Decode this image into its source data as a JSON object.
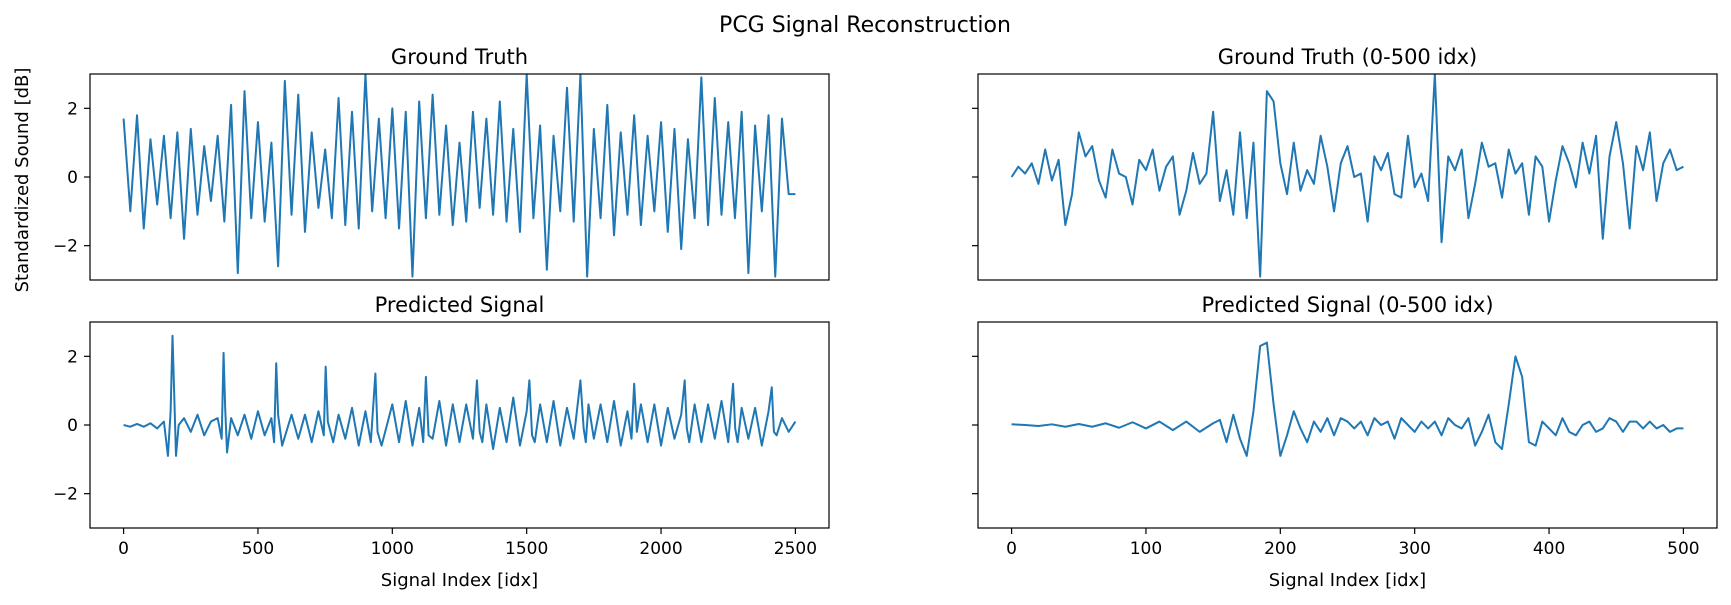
{
  "figure": {
    "title": "PCG Signal Reconstruction"
  },
  "chart_data": [
    {
      "type": "line",
      "title": "Ground Truth",
      "xlabel": "",
      "ylabel": "Standardized Sound [dB]",
      "xlim": [
        -125,
        2625
      ],
      "ylim": [
        -3,
        3
      ],
      "xticks": [],
      "xtick_labels": [],
      "yticks": [
        -2,
        0,
        2
      ],
      "ytick_labels": [
        "−2",
        "0",
        "2"
      ],
      "grid": false,
      "color": "#1f77b4",
      "series": [
        {
          "x": [
            0,
            25,
            50,
            75,
            100,
            125,
            150,
            175,
            200,
            225,
            250,
            275,
            300,
            325,
            350,
            375,
            400,
            425,
            450,
            475,
            500,
            525,
            550,
            575,
            600,
            625,
            650,
            675,
            700,
            725,
            750,
            775,
            800,
            825,
            850,
            875,
            900,
            925,
            950,
            975,
            1000,
            1025,
            1050,
            1075,
            1100,
            1125,
            1150,
            1175,
            1200,
            1225,
            1250,
            1275,
            1300,
            1325,
            1350,
            1375,
            1400,
            1425,
            1450,
            1475,
            1500,
            1525,
            1550,
            1575,
            1600,
            1625,
            1650,
            1675,
            1700,
            1725,
            1750,
            1775,
            1800,
            1825,
            1850,
            1875,
            1900,
            1925,
            1950,
            1975,
            2000,
            2025,
            2050,
            2075,
            2100,
            2125,
            2150,
            2175,
            2200,
            2225,
            2250,
            2275,
            2300,
            2325,
            2350,
            2375,
            2400,
            2425,
            2450,
            2475,
            2500
          ],
          "y": [
            1.7,
            -1.0,
            1.8,
            -1.5,
            1.1,
            -0.8,
            1.2,
            -1.2,
            1.3,
            -1.8,
            1.4,
            -1.1,
            0.9,
            -0.7,
            1.2,
            -1.3,
            2.1,
            -2.8,
            2.5,
            -1.2,
            1.6,
            -1.3,
            1.0,
            -2.6,
            2.8,
            -1.1,
            2.4,
            -1.6,
            1.3,
            -0.9,
            0.8,
            -1.2,
            2.3,
            -1.4,
            1.9,
            -1.5,
            3.0,
            -1.0,
            1.7,
            -1.2,
            2.0,
            -1.5,
            1.9,
            -2.9,
            2.2,
            -1.2,
            2.4,
            -1.1,
            1.5,
            -1.4,
            1.0,
            -1.3,
            1.9,
            -0.9,
            1.7,
            -1.1,
            2.2,
            -1.3,
            1.4,
            -1.6,
            3.0,
            -1.2,
            1.5,
            -2.7,
            1.2,
            -1.0,
            2.6,
            -1.3,
            3.0,
            -2.9,
            1.4,
            -1.2,
            2.1,
            -1.7,
            1.3,
            -1.1,
            1.8,
            -1.4,
            1.2,
            -1.0,
            1.6,
            -1.6,
            1.4,
            -2.1,
            1.1,
            -1.2,
            2.9,
            -1.4,
            2.3,
            -1.1,
            1.6,
            -1.2,
            1.9,
            -2.8,
            1.5,
            -1.0,
            1.8,
            -2.9,
            1.7,
            -0.5,
            -0.5
          ]
        }
      ]
    },
    {
      "type": "line",
      "title": "Ground Truth (0-500 idx)",
      "xlabel": "",
      "ylabel": "",
      "xlim": [
        -25,
        525
      ],
      "ylim": [
        -3,
        3
      ],
      "xticks": [],
      "xtick_labels": [],
      "yticks": [
        -2,
        0,
        2
      ],
      "ytick_labels": [],
      "grid": false,
      "color": "#1f77b4",
      "series": [
        {
          "x": [
            0,
            5,
            10,
            15,
            20,
            25,
            30,
            35,
            40,
            45,
            50,
            55,
            60,
            65,
            70,
            75,
            80,
            85,
            90,
            95,
            100,
            105,
            110,
            115,
            120,
            125,
            130,
            135,
            140,
            145,
            150,
            155,
            160,
            165,
            170,
            175,
            180,
            185,
            190,
            195,
            200,
            205,
            210,
            215,
            220,
            225,
            230,
            235,
            240,
            245,
            250,
            255,
            260,
            265,
            270,
            275,
            280,
            285,
            290,
            295,
            300,
            305,
            310,
            315,
            320,
            325,
            330,
            335,
            340,
            345,
            350,
            355,
            360,
            365,
            370,
            375,
            380,
            385,
            390,
            395,
            400,
            405,
            410,
            415,
            420,
            425,
            430,
            435,
            440,
            445,
            450,
            455,
            460,
            465,
            470,
            475,
            480,
            485,
            490,
            495,
            500
          ],
          "y": [
            0.0,
            0.3,
            0.1,
            0.4,
            -0.2,
            0.8,
            -0.1,
            0.5,
            -1.4,
            -0.5,
            1.3,
            0.6,
            0.9,
            -0.1,
            -0.6,
            0.8,
            0.1,
            0.0,
            -0.8,
            0.5,
            0.2,
            0.8,
            -0.4,
            0.3,
            0.6,
            -1.1,
            -0.4,
            0.7,
            -0.2,
            0.1,
            1.9,
            -0.7,
            0.2,
            -1.1,
            1.3,
            -1.2,
            1.0,
            -2.9,
            2.5,
            2.2,
            0.4,
            -0.5,
            1.0,
            -0.4,
            0.2,
            -0.2,
            1.2,
            0.3,
            -1.0,
            0.4,
            0.9,
            0.0,
            0.1,
            -1.3,
            0.6,
            0.2,
            0.7,
            -0.5,
            -0.6,
            1.2,
            -0.3,
            0.1,
            -0.7,
            3.0,
            -1.9,
            0.6,
            0.2,
            0.8,
            -1.2,
            -0.2,
            1.0,
            0.3,
            0.4,
            -0.6,
            0.8,
            0.1,
            0.4,
            -1.1,
            0.6,
            0.3,
            -1.3,
            -0.1,
            0.9,
            0.4,
            -0.3,
            1.0,
            0.1,
            1.2,
            -1.8,
            0.6,
            1.6,
            0.4,
            -1.5,
            0.9,
            0.2,
            1.3,
            -0.7,
            0.4,
            0.8,
            0.2,
            0.3
          ]
        }
      ]
    },
    {
      "type": "line",
      "title": "Predicted Signal",
      "xlabel": "Signal Index [idx]",
      "ylabel": "",
      "xlim": [
        -125,
        2625
      ],
      "ylim": [
        -3,
        3
      ],
      "xticks": [
        0,
        500,
        1000,
        1500,
        2000,
        2500
      ],
      "xtick_labels": [
        "0",
        "500",
        "1000",
        "1500",
        "2000",
        "2500"
      ],
      "yticks": [
        -2,
        0,
        2
      ],
      "ytick_labels": [
        "−2",
        "0",
        "2"
      ],
      "grid": false,
      "color": "#1f77b4",
      "series": [
        {
          "x": [
            0,
            25,
            50,
            75,
            100,
            125,
            150,
            165,
            175,
            182,
            188,
            195,
            205,
            225,
            250,
            275,
            300,
            325,
            350,
            365,
            372,
            378,
            385,
            400,
            425,
            450,
            475,
            500,
            525,
            550,
            560,
            568,
            575,
            590,
            625,
            650,
            675,
            700,
            725,
            745,
            752,
            760,
            780,
            800,
            825,
            850,
            875,
            900,
            920,
            937,
            945,
            960,
            1000,
            1025,
            1050,
            1075,
            1100,
            1115,
            1125,
            1135,
            1150,
            1175,
            1200,
            1225,
            1250,
            1275,
            1300,
            1315,
            1325,
            1335,
            1350,
            1375,
            1400,
            1425,
            1450,
            1475,
            1500,
            1510,
            1520,
            1530,
            1550,
            1575,
            1600,
            1625,
            1650,
            1675,
            1700,
            1712,
            1720,
            1730,
            1750,
            1775,
            1800,
            1825,
            1850,
            1875,
            1890,
            1900,
            1910,
            1925,
            1950,
            1975,
            2000,
            2025,
            2050,
            2075,
            2088,
            2096,
            2105,
            2125,
            2150,
            2175,
            2200,
            2225,
            2250,
            2268,
            2276,
            2285,
            2300,
            2325,
            2350,
            2375,
            2400,
            2412,
            2420,
            2430,
            2450,
            2475,
            2500
          ],
          "y": [
            0.0,
            -0.05,
            0.03,
            -0.05,
            0.05,
            -0.1,
            0.1,
            -0.9,
            0.4,
            2.6,
            1.0,
            -0.9,
            0.0,
            0.2,
            -0.2,
            0.3,
            -0.3,
            0.1,
            0.2,
            -0.4,
            2.1,
            0.5,
            -0.8,
            0.2,
            -0.3,
            0.3,
            -0.4,
            0.4,
            -0.3,
            0.2,
            -0.5,
            1.8,
            0.3,
            -0.6,
            0.3,
            -0.4,
            0.3,
            -0.5,
            0.4,
            -0.3,
            1.7,
            0.1,
            -0.5,
            0.3,
            -0.4,
            0.5,
            -0.6,
            0.4,
            -0.5,
            1.5,
            -0.2,
            -0.6,
            0.6,
            -0.5,
            0.7,
            -0.6,
            0.5,
            -0.5,
            1.4,
            -0.3,
            -0.4,
            0.7,
            -0.6,
            0.6,
            -0.5,
            0.6,
            -0.4,
            1.3,
            -0.2,
            -0.5,
            0.6,
            -0.7,
            0.5,
            -0.5,
            0.8,
            -0.6,
            0.4,
            1.3,
            -0.3,
            -0.5,
            0.6,
            -0.5,
            0.7,
            -0.6,
            0.5,
            -0.4,
            1.3,
            -0.1,
            -0.5,
            0.6,
            -0.4,
            0.6,
            -0.5,
            0.7,
            -0.6,
            0.4,
            -0.4,
            1.2,
            -0.2,
            0.6,
            -0.5,
            0.6,
            -0.6,
            0.5,
            -0.4,
            0.3,
            1.3,
            -0.1,
            -0.5,
            0.6,
            -0.5,
            0.6,
            -0.4,
            0.7,
            -0.5,
            1.2,
            -0.1,
            -0.5,
            0.5,
            -0.4,
            0.5,
            -0.6,
            0.4,
            1.1,
            -0.2,
            -0.3,
            0.2,
            -0.2,
            0.1
          ]
        }
      ]
    },
    {
      "type": "line",
      "title": "Predicted Signal (0-500 idx)",
      "xlabel": "Signal Index [idx]",
      "ylabel": "",
      "xlim": [
        -25,
        525
      ],
      "ylim": [
        -3,
        3
      ],
      "xticks": [
        0,
        100,
        200,
        300,
        400,
        500
      ],
      "xtick_labels": [
        "0",
        "100",
        "200",
        "300",
        "400",
        "500"
      ],
      "yticks": [
        -2,
        0,
        2
      ],
      "ytick_labels": [],
      "grid": false,
      "color": "#1f77b4",
      "series": [
        {
          "x": [
            0,
            10,
            20,
            30,
            40,
            50,
            60,
            70,
            80,
            90,
            100,
            110,
            120,
            130,
            140,
            150,
            155,
            160,
            165,
            170,
            175,
            180,
            185,
            190,
            195,
            200,
            205,
            210,
            215,
            220,
            225,
            230,
            235,
            240,
            245,
            250,
            255,
            260,
            265,
            270,
            275,
            280,
            285,
            290,
            295,
            300,
            305,
            310,
            315,
            320,
            325,
            330,
            335,
            340,
            345,
            350,
            355,
            360,
            365,
            370,
            375,
            380,
            385,
            390,
            395,
            400,
            405,
            410,
            415,
            420,
            425,
            430,
            435,
            440,
            445,
            450,
            455,
            460,
            465,
            470,
            475,
            480,
            485,
            490,
            495,
            500
          ],
          "y": [
            0.02,
            0.0,
            -0.03,
            0.02,
            -0.05,
            0.03,
            -0.05,
            0.05,
            -0.08,
            0.08,
            -0.1,
            0.1,
            -0.15,
            0.1,
            -0.2,
            0.05,
            0.15,
            -0.5,
            0.3,
            -0.4,
            -0.9,
            0.4,
            2.3,
            2.4,
            0.6,
            -0.9,
            -0.3,
            0.4,
            -0.1,
            -0.5,
            0.1,
            -0.2,
            0.2,
            -0.3,
            0.2,
            0.1,
            -0.1,
            0.1,
            -0.3,
            0.2,
            0.0,
            0.1,
            -0.4,
            0.2,
            0.0,
            -0.2,
            0.1,
            -0.1,
            0.1,
            -0.3,
            0.2,
            0.0,
            -0.1,
            0.2,
            -0.6,
            -0.2,
            0.3,
            -0.5,
            -0.7,
            0.6,
            2.0,
            1.4,
            -0.5,
            -0.6,
            0.1,
            -0.1,
            -0.3,
            0.2,
            -0.2,
            -0.3,
            0.0,
            0.1,
            -0.2,
            -0.1,
            0.2,
            0.1,
            -0.2,
            0.1,
            0.1,
            -0.1,
            0.1,
            -0.1,
            0.0,
            -0.2,
            -0.1,
            -0.1
          ]
        }
      ]
    }
  ]
}
